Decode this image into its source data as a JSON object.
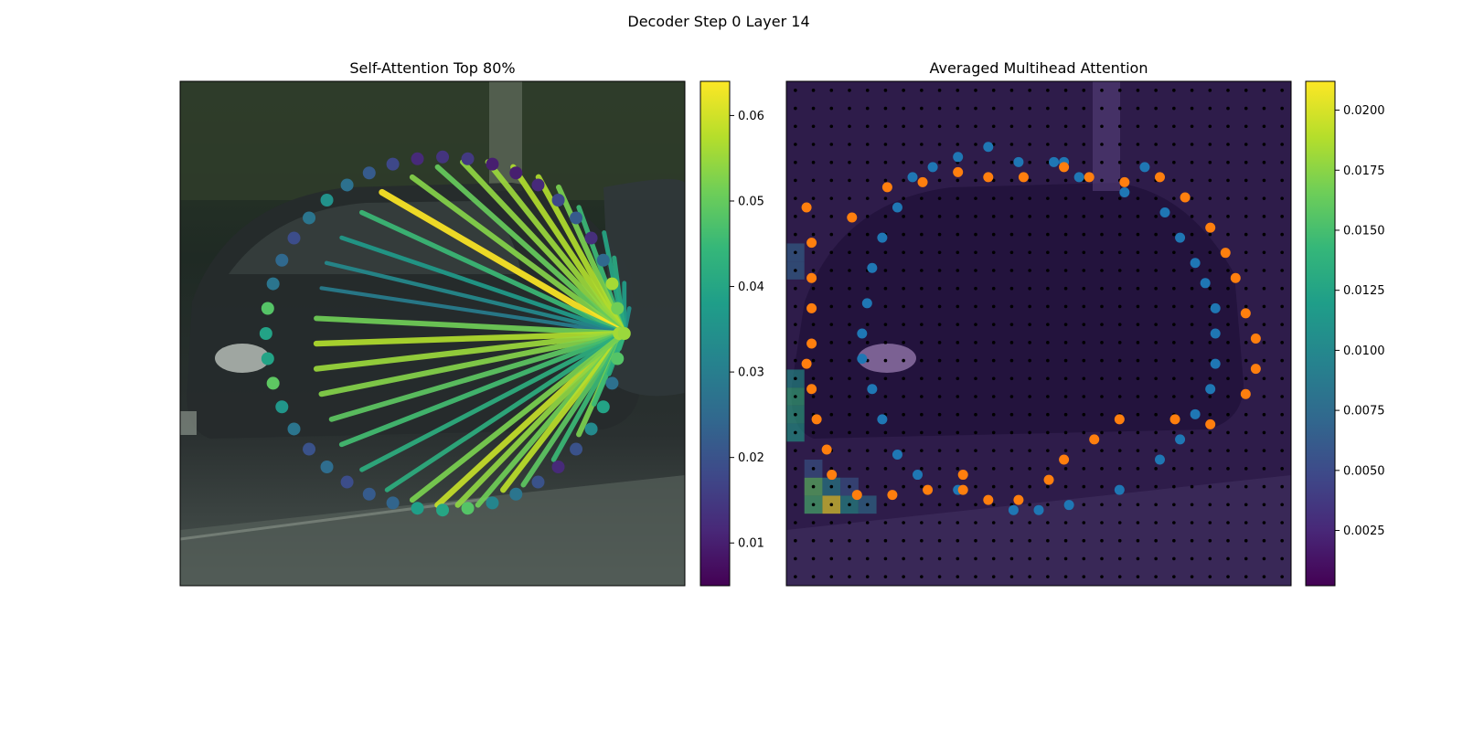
{
  "figure": {
    "title": "Decoder Step 0 Layer 14"
  },
  "colormap": [
    "#440154",
    "#482878",
    "#3e4989",
    "#31688e",
    "#26828e",
    "#1f9e89",
    "#35b779",
    "#6ece58",
    "#b5de2b",
    "#fde725"
  ],
  "colors": {
    "blue_points": "#1f77b4",
    "orange_points": "#ff7f0e",
    "grid_dots": "#000000"
  },
  "chart_data": [
    {
      "type": "scatter",
      "title": "Self-Attention Top 80%",
      "background": "photo of a dark car on a street",
      "colorbar": {
        "min": 0.005,
        "max": 0.064,
        "ticks": [
          "0.01",
          "0.02",
          "0.03",
          "0.04",
          "0.05",
          "0.06"
        ],
        "tick_values": [
          0.01,
          0.02,
          0.03,
          0.04,
          0.05,
          0.06
        ]
      },
      "query_point": {
        "x": 88,
        "y": 50,
        "value": 0.055
      },
      "points": [
        {
          "x": 51,
          "y": 84,
          "w": 0.059
        },
        {
          "x": 55,
          "y": 84,
          "w": 0.054
        },
        {
          "x": 59,
          "y": 84,
          "w": 0.051
        },
        {
          "x": 64,
          "y": 81,
          "w": 0.058
        },
        {
          "x": 68,
          "y": 80,
          "w": 0.049
        },
        {
          "x": 74,
          "y": 75,
          "w": 0.045
        },
        {
          "x": 79,
          "y": 70,
          "w": 0.052
        },
        {
          "x": 82,
          "y": 64,
          "w": 0.045
        },
        {
          "x": 85,
          "y": 58,
          "w": 0.041
        },
        {
          "x": 87,
          "y": 53,
          "w": 0.043
        },
        {
          "x": 89,
          "y": 45,
          "w": 0.035
        },
        {
          "x": 88,
          "y": 40,
          "w": 0.038
        },
        {
          "x": 86,
          "y": 35,
          "w": 0.041
        },
        {
          "x": 84,
          "y": 30,
          "w": 0.04
        },
        {
          "x": 79,
          "y": 25,
          "w": 0.045
        },
        {
          "x": 75,
          "y": 21,
          "w": 0.052
        },
        {
          "x": 71,
          "y": 19,
          "w": 0.057
        },
        {
          "x": 66,
          "y": 17,
          "w": 0.057
        },
        {
          "x": 61,
          "y": 16,
          "w": 0.055
        },
        {
          "x": 56,
          "y": 16,
          "w": 0.054
        },
        {
          "x": 51,
          "y": 17,
          "w": 0.05
        },
        {
          "x": 46,
          "y": 19,
          "w": 0.053
        },
        {
          "x": 40,
          "y": 22,
          "w": 0.064
        },
        {
          "x": 36,
          "y": 26,
          "w": 0.045
        },
        {
          "x": 32,
          "y": 31,
          "w": 0.037
        },
        {
          "x": 29,
          "y": 36,
          "w": 0.033
        },
        {
          "x": 28,
          "y": 41,
          "w": 0.03
        },
        {
          "x": 27,
          "y": 47,
          "w": 0.051
        },
        {
          "x": 27,
          "y": 52,
          "w": 0.057
        },
        {
          "x": 27,
          "y": 57,
          "w": 0.055
        },
        {
          "x": 28,
          "y": 62,
          "w": 0.053
        },
        {
          "x": 30,
          "y": 67,
          "w": 0.049
        },
        {
          "x": 32,
          "y": 72,
          "w": 0.046
        },
        {
          "x": 36,
          "y": 77,
          "w": 0.042
        },
        {
          "x": 41,
          "y": 81,
          "w": 0.042
        },
        {
          "x": 46,
          "y": 83,
          "w": 0.052
        }
      ],
      "node_values": [
        0.056,
        0.048,
        0.027,
        0.039,
        0.033,
        0.02,
        0.012,
        0.02,
        0.028,
        0.032,
        0.048,
        0.04,
        0.038,
        0.024,
        0.022,
        0.019,
        0.026,
        0.02,
        0.028,
        0.036,
        0.049,
        0.039,
        0.039,
        0.048,
        0.028,
        0.025,
        0.019,
        0.028,
        0.035,
        0.027,
        0.022,
        0.018,
        0.012,
        0.014,
        0.015,
        0.01,
        0.01,
        0.012,
        0.018,
        0.022,
        0.013,
        0.025,
        0.056,
        0.051
      ]
    },
    {
      "type": "heatmap",
      "title": "Averaged Multihead Attention",
      "background": "same street photo overlaid with attention heatmap",
      "colorbar": {
        "min": 0.0002,
        "max": 0.0212,
        "ticks": [
          "0.0025",
          "0.0050",
          "0.0075",
          "0.0100",
          "0.0125",
          "0.0150",
          "0.0175",
          "0.0200"
        ],
        "tick_values": [
          0.0025,
          0.005,
          0.0075,
          0.01,
          0.0125,
          0.015,
          0.0175,
          0.02
        ]
      },
      "grid": {
        "rows": 28,
        "cols": 28
      },
      "hot_cells": [
        {
          "r": 23,
          "c": 2,
          "v": 0.0212
        },
        {
          "r": 22,
          "c": 1,
          "v": 0.016
        },
        {
          "r": 23,
          "c": 1,
          "v": 0.015
        },
        {
          "r": 17,
          "c": 0,
          "v": 0.014
        },
        {
          "r": 18,
          "c": 0,
          "v": 0.013
        },
        {
          "r": 19,
          "c": 0,
          "v": 0.012
        },
        {
          "r": 16,
          "c": 0,
          "v": 0.011
        },
        {
          "r": 23,
          "c": 3,
          "v": 0.011
        },
        {
          "r": 22,
          "c": 2,
          "v": 0.01
        },
        {
          "r": 23,
          "c": 4,
          "v": 0.008
        },
        {
          "r": 9,
          "c": 0,
          "v": 0.007
        },
        {
          "r": 10,
          "c": 0,
          "v": 0.007
        },
        {
          "r": 22,
          "c": 3,
          "v": 0.006
        },
        {
          "r": 21,
          "c": 1,
          "v": 0.006
        }
      ],
      "blue_points": [
        {
          "x": 34,
          "y": 15
        },
        {
          "x": 40,
          "y": 13
        },
        {
          "x": 46,
          "y": 16
        },
        {
          "x": 53,
          "y": 16
        },
        {
          "x": 58,
          "y": 19
        },
        {
          "x": 67,
          "y": 22
        },
        {
          "x": 75,
          "y": 26
        },
        {
          "x": 78,
          "y": 31
        },
        {
          "x": 81,
          "y": 36
        },
        {
          "x": 83,
          "y": 40
        },
        {
          "x": 85,
          "y": 45
        },
        {
          "x": 85,
          "y": 50
        },
        {
          "x": 85,
          "y": 56
        },
        {
          "x": 84,
          "y": 61
        },
        {
          "x": 81,
          "y": 66
        },
        {
          "x": 78,
          "y": 71
        },
        {
          "x": 74,
          "y": 75
        },
        {
          "x": 66,
          "y": 81
        },
        {
          "x": 56,
          "y": 84
        },
        {
          "x": 50,
          "y": 85
        },
        {
          "x": 45,
          "y": 85
        },
        {
          "x": 34,
          "y": 81
        },
        {
          "x": 26,
          "y": 78
        },
        {
          "x": 22,
          "y": 74
        },
        {
          "x": 19,
          "y": 67
        },
        {
          "x": 17,
          "y": 61
        },
        {
          "x": 15,
          "y": 55
        },
        {
          "x": 15,
          "y": 50
        },
        {
          "x": 16,
          "y": 44
        },
        {
          "x": 17,
          "y": 37
        },
        {
          "x": 19,
          "y": 31
        },
        {
          "x": 22,
          "y": 25
        },
        {
          "x": 25,
          "y": 19
        },
        {
          "x": 29,
          "y": 17
        },
        {
          "x": 55,
          "y": 16
        },
        {
          "x": 71,
          "y": 17
        }
      ],
      "orange_points": [
        {
          "x": 4,
          "y": 25
        },
        {
          "x": 5,
          "y": 32
        },
        {
          "x": 5,
          "y": 39
        },
        {
          "x": 5,
          "y": 45
        },
        {
          "x": 5,
          "y": 52
        },
        {
          "x": 4,
          "y": 56
        },
        {
          "x": 5,
          "y": 61
        },
        {
          "x": 6,
          "y": 67
        },
        {
          "x": 9,
          "y": 78
        },
        {
          "x": 14,
          "y": 82
        },
        {
          "x": 21,
          "y": 82
        },
        {
          "x": 28,
          "y": 81
        },
        {
          "x": 35,
          "y": 78
        },
        {
          "x": 40,
          "y": 83
        },
        {
          "x": 46,
          "y": 83
        },
        {
          "x": 52,
          "y": 79
        },
        {
          "x": 55,
          "y": 75
        },
        {
          "x": 61,
          "y": 71
        },
        {
          "x": 66,
          "y": 67
        },
        {
          "x": 77,
          "y": 67
        },
        {
          "x": 84,
          "y": 68
        },
        {
          "x": 91,
          "y": 62
        },
        {
          "x": 93,
          "y": 57
        },
        {
          "x": 93,
          "y": 51
        },
        {
          "x": 91,
          "y": 46
        },
        {
          "x": 89,
          "y": 39
        },
        {
          "x": 87,
          "y": 34
        },
        {
          "x": 84,
          "y": 29
        },
        {
          "x": 79,
          "y": 23
        },
        {
          "x": 74,
          "y": 19
        },
        {
          "x": 67,
          "y": 20
        },
        {
          "x": 60,
          "y": 19
        },
        {
          "x": 55,
          "y": 17
        },
        {
          "x": 47,
          "y": 19
        },
        {
          "x": 40,
          "y": 19
        },
        {
          "x": 34,
          "y": 18
        },
        {
          "x": 27,
          "y": 20
        },
        {
          "x": 20,
          "y": 21
        },
        {
          "x": 13,
          "y": 27
        },
        {
          "x": 8,
          "y": 73
        },
        {
          "x": 35,
          "y": 81
        }
      ]
    }
  ]
}
